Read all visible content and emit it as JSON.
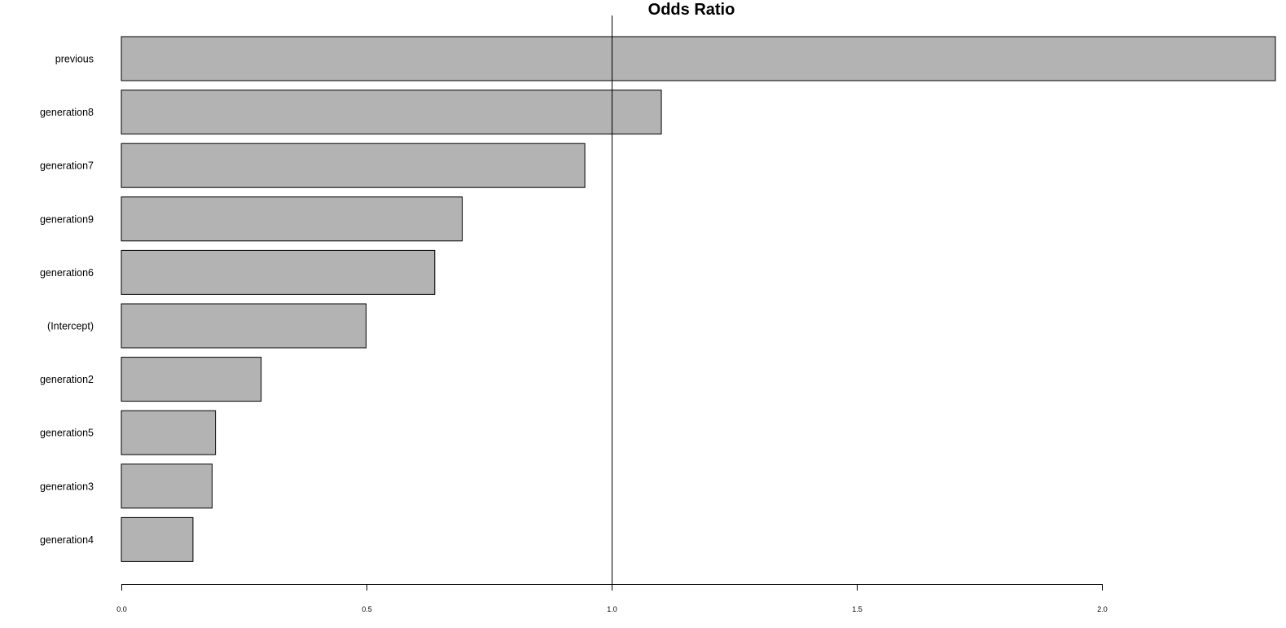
{
  "chart_data": {
    "type": "bar",
    "orientation": "horizontal",
    "title": "Odds Ratio",
    "xlabel": "",
    "ylabel": "",
    "categories": [
      "previous",
      "generation8",
      "generation7",
      "generation9",
      "generation6",
      "(Intercept)",
      "generation2",
      "generation5",
      "generation3",
      "generation4"
    ],
    "values": [
      2.353,
      1.101,
      0.945,
      0.695,
      0.639,
      0.499,
      0.285,
      0.192,
      0.185,
      0.146
    ],
    "xlim": [
      0,
      2.353
    ],
    "x_ticks": [
      0.0,
      0.5,
      1.0,
      1.5,
      2.0
    ],
    "x_tick_labels": [
      "0.0",
      "0.5",
      "1.0",
      "1.5",
      "2.0"
    ],
    "reference_line": 1.0,
    "grid": false,
    "bar_color": "#b3b3b3",
    "edge_color": "#000000"
  }
}
